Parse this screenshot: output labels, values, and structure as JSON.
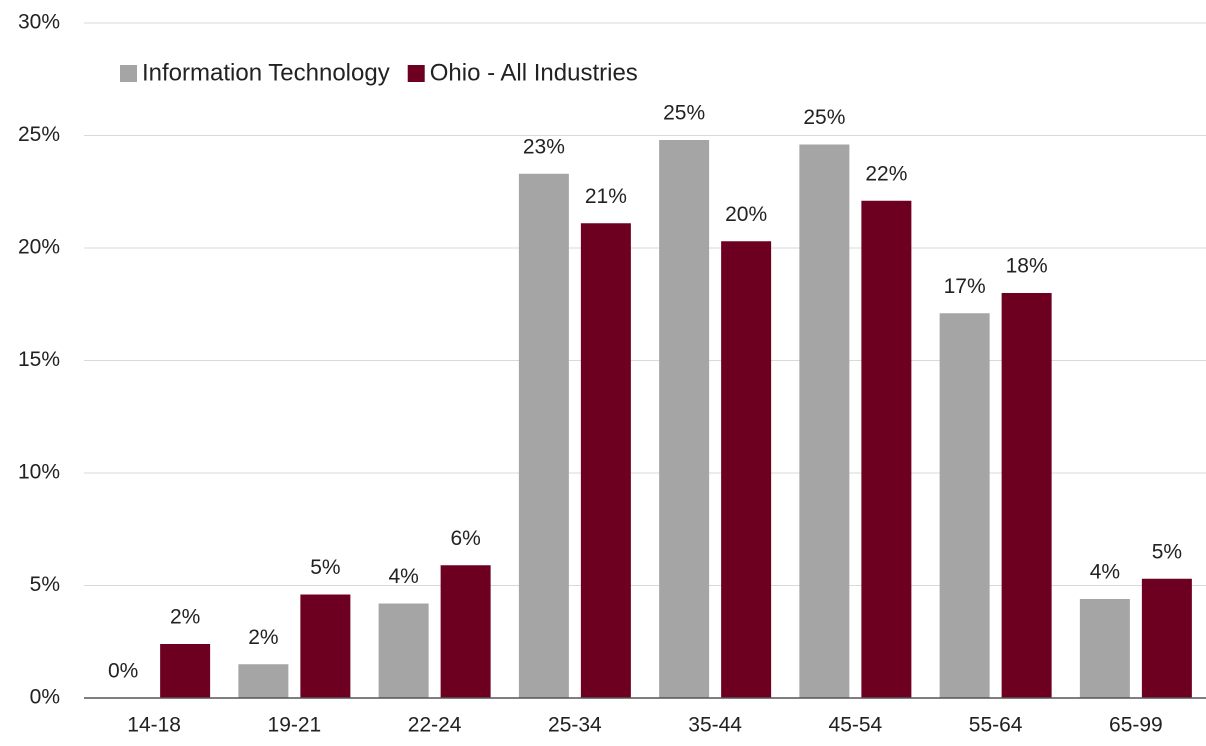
{
  "chart_data": {
    "type": "bar",
    "categories": [
      "14-18",
      "19-21",
      "22-24",
      "25-34",
      "35-44",
      "45-54",
      "55-64",
      "65-99"
    ],
    "series": [
      {
        "name": "Information Technology",
        "color": "#a5a5a5",
        "values": [
          0,
          1.5,
          4.2,
          23.3,
          24.8,
          24.6,
          17.1,
          4.4
        ],
        "value_labels": [
          "0%",
          "2%",
          "4%",
          "23%",
          "25%",
          "25%",
          "17%",
          "4%"
        ]
      },
      {
        "name": "Ohio - All Industries",
        "color": "#6d0020",
        "values": [
          2.4,
          4.6,
          5.9,
          21.1,
          20.3,
          22.1,
          18.0,
          5.3
        ],
        "value_labels": [
          "2%",
          "5%",
          "6%",
          "21%",
          "20%",
          "22%",
          "18%",
          "5%"
        ]
      }
    ],
    "ylim": [
      0,
      30
    ],
    "yticks": [
      {
        "value": 0,
        "label": "0%"
      },
      {
        "value": 5,
        "label": "5%"
      },
      {
        "value": 10,
        "label": "10%"
      },
      {
        "value": 15,
        "label": "15%"
      },
      {
        "value": 20,
        "label": "20%"
      },
      {
        "value": 25,
        "label": "25%"
      },
      {
        "value": 30,
        "label": "30%"
      }
    ],
    "grid": true,
    "legend": "top-left"
  }
}
